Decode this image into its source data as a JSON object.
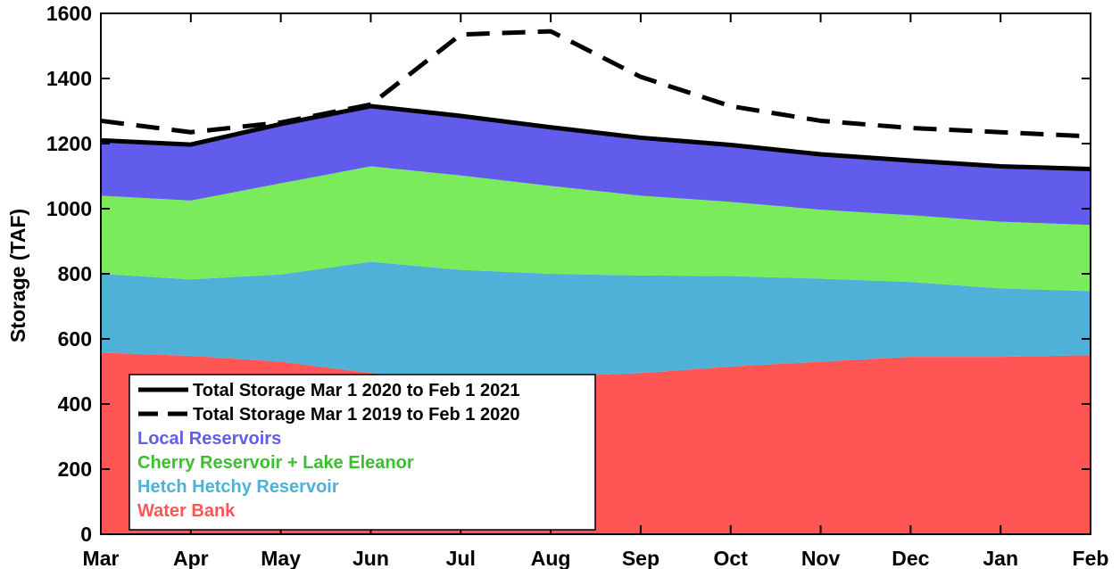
{
  "chart_data": {
    "type": "area",
    "title": "",
    "xlabel": "",
    "ylabel": "Storage (TAF)",
    "categories": [
      "Mar",
      "Apr",
      "May",
      "Jun",
      "Jul",
      "Aug",
      "Sep",
      "Oct",
      "Nov",
      "Dec",
      "Jan",
      "Feb"
    ],
    "ylim": [
      0,
      1600
    ],
    "yticks": [
      0,
      200,
      400,
      600,
      800,
      1000,
      1200,
      1400,
      1600
    ],
    "grid": false,
    "legend_position": "bottom-left",
    "stacked_series": [
      {
        "name": "Water Bank",
        "color": "#ff5555",
        "values": [
          558,
          548,
          530,
          495,
          480,
          485,
          495,
          515,
          530,
          545,
          545,
          550
        ]
      },
      {
        "name": "Hetch Hetchy Reservoir",
        "color": "#4fb0d8",
        "values": [
          242,
          235,
          268,
          342,
          332,
          315,
          300,
          278,
          255,
          230,
          210,
          197
        ]
      },
      {
        "name": "Cherry Reservoir + Lake Eleanor",
        "color": "#7aeb5a",
        "values": [
          240,
          242,
          280,
          293,
          290,
          270,
          245,
          228,
          212,
          205,
          205,
          203
        ]
      },
      {
        "name": "Local Reservoirs",
        "color": "#625cec",
        "values": [
          170,
          172,
          182,
          185,
          183,
          180,
          178,
          175,
          170,
          168,
          170,
          172
        ]
      }
    ],
    "line_series": [
      {
        "name": "Total Storage Mar 1 2020 to Feb 1 2021",
        "style": "solid",
        "color": "#000000",
        "values": [
          1210,
          1197,
          1260,
          1315,
          1285,
          1250,
          1218,
          1196,
          1167,
          1148,
          1130,
          1122
        ]
      },
      {
        "name": "Total Storage Mar 1 2019 to Feb 1 2020",
        "style": "dashed",
        "color": "#000000",
        "values": [
          1270,
          1235,
          1265,
          1320,
          1535,
          1545,
          1405,
          1315,
          1270,
          1248,
          1235,
          1222
        ]
      }
    ],
    "legend": [
      {
        "label": "Total Storage Mar 1 2020 to Feb 1 2021",
        "kind": "line-solid",
        "color": "#000000"
      },
      {
        "label": "Total Storage Mar 1 2019 to Feb 1 2020",
        "kind": "line-dashed",
        "color": "#000000"
      },
      {
        "label": "Local Reservoirs",
        "kind": "text",
        "color": "#625cec"
      },
      {
        "label": "Cherry Reservoir + Lake Eleanor",
        "kind": "text",
        "color": "#3cbf2e"
      },
      {
        "label": "Hetch Hetchy Reservoir",
        "kind": "text",
        "color": "#4fb0d8"
      },
      {
        "label": "Water Bank",
        "kind": "text",
        "color": "#ff5555"
      }
    ]
  }
}
